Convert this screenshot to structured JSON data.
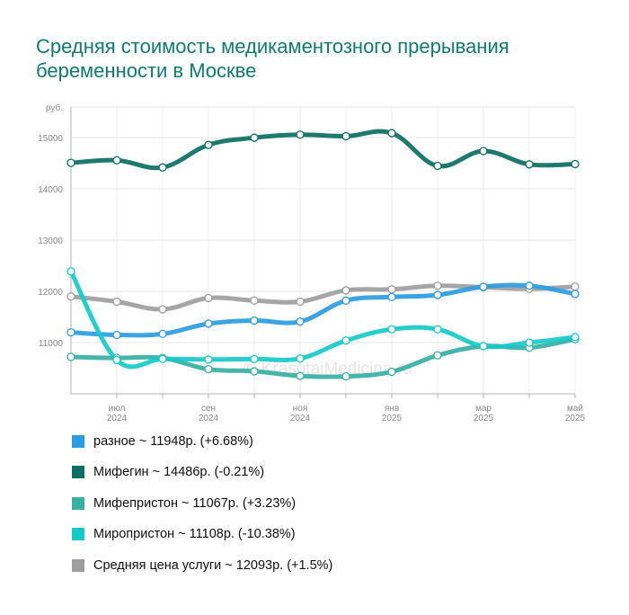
{
  "title": "Средняя стоимость медикаментозного прерывания беременности в Москве",
  "watermark": "© KrasotaiMedicina.ru",
  "legend": [
    {
      "label": "разное ~ 11948р. (+6.68%)",
      "color": "#2b9ce0"
    },
    {
      "label": "Мифегин ~ 14486р. (-0.21%)",
      "color": "#0b6f63"
    },
    {
      "label": "Мифепристон ~ 11067р. (+3.23%)",
      "color": "#37b0a3"
    },
    {
      "label": "Миропристон ~ 11108р. (-10.38%)",
      "color": "#16c9c9"
    },
    {
      "label": "Средняя цена услуги ~ 12093р. (+1.5%)",
      "color": "#9e9e9e"
    }
  ],
  "chart_data": {
    "type": "line",
    "title": "Средняя стоимость медикаментозного прерывания беременности в Москве",
    "ylabel": "руб.",
    "ylim": [
      10000,
      15600
    ],
    "yticks": [
      11000,
      12000,
      13000,
      14000,
      15000
    ],
    "x_ticks": [
      {
        "month": "июл",
        "year": "2024",
        "x": 1
      },
      {
        "month": "сен",
        "year": "2024",
        "x": 3
      },
      {
        "month": "ноя",
        "year": "2024",
        "x": 5
      },
      {
        "month": "янв",
        "year": "2025",
        "x": 7
      },
      {
        "month": "мар",
        "year": "2025",
        "x": 9
      },
      {
        "month": "май",
        "year": "2025",
        "x": 11
      }
    ],
    "x": [
      0,
      1,
      2,
      3,
      4,
      5,
      6,
      7,
      8,
      9,
      10,
      11
    ],
    "grid": true,
    "series": [
      {
        "name": "Средняя цена услуги",
        "color": "#9e9e9e",
        "values": [
          11900,
          11800,
          11650,
          11870,
          11820,
          11800,
          12020,
          12040,
          12110,
          12080,
          12050,
          12093
        ]
      },
      {
        "name": "Мифегин",
        "color": "#0b6f63",
        "values": [
          14510,
          14560,
          14420,
          14860,
          15000,
          15060,
          15030,
          15090,
          14450,
          14740,
          14480,
          14486
        ]
      },
      {
        "name": "разное",
        "color": "#2b9ce0",
        "values": [
          11200,
          11150,
          11170,
          11370,
          11430,
          11410,
          11820,
          11890,
          11930,
          12090,
          12110,
          11948
        ]
      },
      {
        "name": "Мифепристон",
        "color": "#37b0a3",
        "values": [
          10720,
          10700,
          10700,
          10480,
          10440,
          10350,
          10340,
          10430,
          10750,
          10930,
          10900,
          11067
        ]
      },
      {
        "name": "Миропристон",
        "color": "#16c9c9",
        "values": [
          12390,
          10660,
          10680,
          10670,
          10680,
          10690,
          11040,
          11260,
          11260,
          10930,
          11000,
          11108
        ]
      }
    ]
  }
}
